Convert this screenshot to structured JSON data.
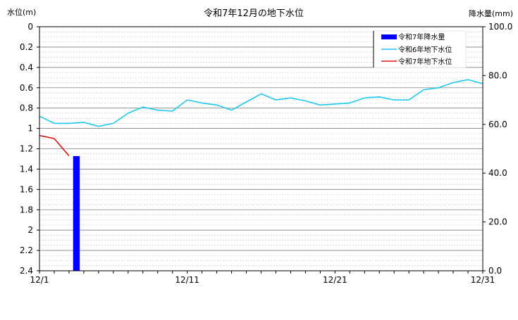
{
  "chart_data": {
    "type": "line",
    "title": "令和7年12月の地下水位",
    "ylabel_left": "水位(m)",
    "ylabel_right": "降水量(mm)",
    "x_ticks": [
      "12/1",
      "12/11",
      "12/21",
      "12/31"
    ],
    "x_tick_days": [
      1,
      11,
      21,
      31
    ],
    "xlim": [
      1,
      31
    ],
    "y_left": {
      "ticks": [
        "0",
        "0.2",
        "0.4",
        "0.6",
        "0.8",
        "1",
        "1.2",
        "1.4",
        "1.6",
        "1.8",
        "2",
        "2.2",
        "2.4"
      ],
      "tick_values": [
        0,
        0.2,
        0.4,
        0.6,
        0.8,
        1.0,
        1.2,
        1.4,
        1.6,
        1.8,
        2.0,
        2.2,
        2.4
      ],
      "range": [
        0,
        2.4
      ],
      "inverted": true
    },
    "y_right": {
      "ticks": [
        "0.0",
        "20.0",
        "40.0",
        "60.0",
        "80.0",
        "100.0"
      ],
      "tick_values": [
        0,
        20,
        40,
        60,
        80,
        100
      ],
      "range": [
        0,
        100
      ]
    },
    "grid": true,
    "legend_position": "top-right",
    "legend": [
      "令和7年降水量",
      "令和6年地下水位",
      "令和7年地下水位"
    ],
    "series": [
      {
        "name": "令和7年降水量",
        "type": "bar",
        "axis": "right",
        "color": "#0000ff",
        "x": [
          3.5
        ],
        "values": [
          47
        ]
      },
      {
        "name": "令和6年地下水位",
        "type": "line",
        "axis": "left",
        "color": "#1ec8f0",
        "x": [
          1,
          2,
          3,
          4,
          5,
          6,
          7,
          8,
          9,
          10,
          11,
          12,
          13,
          14,
          15,
          16,
          17,
          18,
          19,
          20,
          21,
          22,
          23,
          24,
          25,
          26,
          27,
          28,
          29,
          30,
          31
        ],
        "values": [
          0.88,
          0.95,
          0.95,
          0.94,
          0.98,
          0.95,
          0.85,
          0.79,
          0.82,
          0.83,
          0.72,
          0.75,
          0.77,
          0.82,
          0.74,
          0.66,
          0.72,
          0.7,
          0.73,
          0.77,
          0.76,
          0.75,
          0.7,
          0.69,
          0.72,
          0.72,
          0.62,
          0.6,
          0.55,
          0.52,
          0.56
        ]
      },
      {
        "name": "令和7年地下水位",
        "type": "line",
        "axis": "left",
        "color": "#e01010",
        "x": [
          1,
          2,
          3
        ],
        "values": [
          1.07,
          1.1,
          1.27
        ]
      }
    ]
  }
}
